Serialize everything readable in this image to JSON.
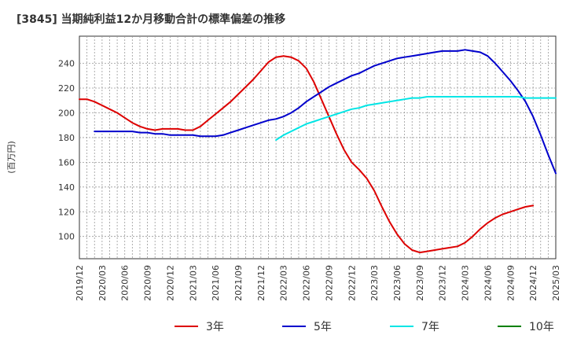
{
  "chart_data": {
    "type": "line",
    "title": "[3845]  当期純利益12か月移動合計の標準偏差の推移",
    "ylabel": "(百万円)",
    "xlabel": "",
    "ylim": [
      82,
      262
    ],
    "yticks": [
      100,
      120,
      140,
      160,
      180,
      200,
      220,
      240
    ],
    "xticks": [
      "2019/12",
      "2020/03",
      "2020/06",
      "2020/09",
      "2020/12",
      "2021/03",
      "2021/06",
      "2021/09",
      "2021/12",
      "2022/03",
      "2022/06",
      "2022/09",
      "2022/12",
      "2023/03",
      "2023/06",
      "2023/09",
      "2023/12",
      "2024/03",
      "2024/06",
      "2024/09",
      "2024/12",
      "2025/03"
    ],
    "grid": true,
    "legend_position": "bottom",
    "colors": {
      "3年": "#dd0000",
      "5年": "#0000cc",
      "7年": "#00e5e5",
      "10年": "#008000"
    },
    "series": [
      {
        "name": "3年",
        "start": "2019/12",
        "values": [
          211,
          211,
          209,
          206,
          203,
          200,
          196,
          192,
          189,
          187,
          186,
          187,
          187,
          187,
          186,
          186,
          189,
          194,
          199,
          204,
          209,
          215,
          221,
          227,
          234,
          241,
          245,
          246,
          245,
          242,
          236,
          225,
          211,
          197,
          183,
          170,
          160,
          154,
          147,
          137,
          124,
          112,
          102,
          94,
          89,
          87,
          88,
          89,
          90,
          91,
          92,
          95,
          100,
          106,
          111,
          115,
          118,
          120,
          122,
          124,
          125
        ]
      },
      {
        "name": "5年",
        "start": "2020/02",
        "values": [
          185,
          185,
          185,
          185,
          185,
          185,
          184,
          184,
          183,
          183,
          182,
          182,
          182,
          182,
          181,
          181,
          181,
          182,
          184,
          186,
          188,
          190,
          192,
          194,
          195,
          197,
          200,
          204,
          209,
          213,
          217,
          221,
          224,
          227,
          230,
          232,
          235,
          238,
          240,
          242,
          244,
          245,
          246,
          247,
          248,
          249,
          250,
          250,
          250,
          251,
          250,
          249,
          246,
          240,
          233,
          226,
          218,
          209,
          197,
          182,
          166,
          151
        ]
      },
      {
        "name": "7年",
        "start": "2022/02",
        "values": [
          178,
          182,
          185,
          188,
          191,
          193,
          195,
          197,
          199,
          201,
          203,
          204,
          206,
          207,
          208,
          209,
          210,
          211,
          212,
          212,
          213,
          213,
          213,
          213,
          213,
          213,
          213,
          213,
          213,
          213,
          213,
          213,
          213,
          212,
          212,
          212,
          212,
          212
        ]
      },
      {
        "name": "10年",
        "start": "2024/12",
        "values": []
      }
    ]
  }
}
